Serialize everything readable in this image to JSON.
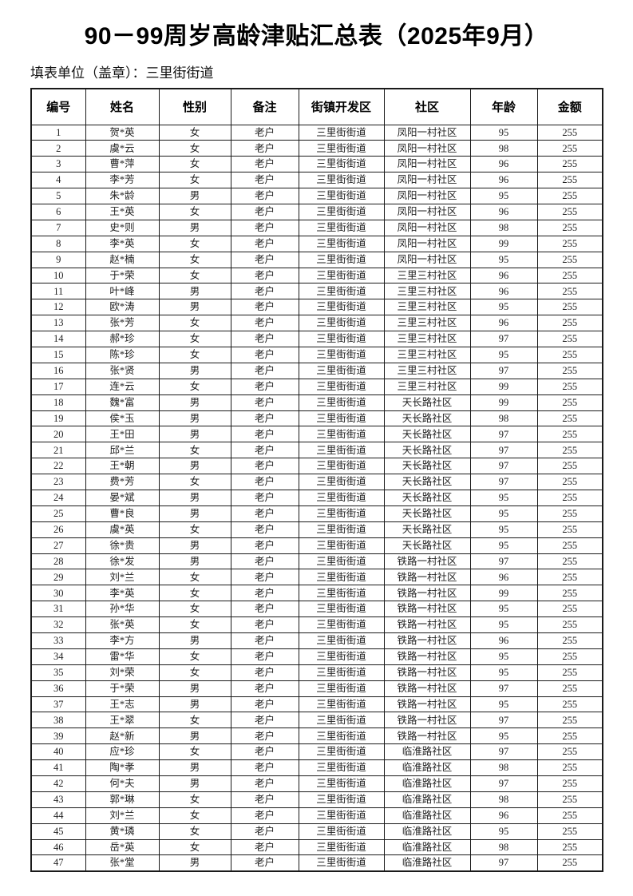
{
  "page": {
    "title": "90－99周岁高龄津贴汇总表（2025年9月）",
    "subtitle": "填表单位（盖章）：三里街街道"
  },
  "table": {
    "headers": [
      "编号",
      "姓名",
      "性别",
      "备注",
      "街镇开发区",
      "社区",
      "年龄",
      "金额"
    ],
    "column_keys": [
      "serial",
      "name",
      "gender",
      "note",
      "street",
      "community",
      "age",
      "amount"
    ],
    "rows": [
      [
        "1",
        "贺*英",
        "女",
        "老户",
        "三里街街道",
        "凤阳一村社区",
        "95",
        "255"
      ],
      [
        "2",
        "虞*云",
        "女",
        "老户",
        "三里街街道",
        "凤阳一村社区",
        "98",
        "255"
      ],
      [
        "3",
        "曹*萍",
        "女",
        "老户",
        "三里街街道",
        "凤阳一村社区",
        "96",
        "255"
      ],
      [
        "4",
        "李*芳",
        "女",
        "老户",
        "三里街街道",
        "凤阳一村社区",
        "96",
        "255"
      ],
      [
        "5",
        "朱*龄",
        "男",
        "老户",
        "三里街街道",
        "凤阳一村社区",
        "95",
        "255"
      ],
      [
        "6",
        "王*英",
        "女",
        "老户",
        "三里街街道",
        "凤阳一村社区",
        "96",
        "255"
      ],
      [
        "7",
        "史*则",
        "男",
        "老户",
        "三里街街道",
        "凤阳一村社区",
        "98",
        "255"
      ],
      [
        "8",
        "李*英",
        "女",
        "老户",
        "三里街街道",
        "凤阳一村社区",
        "99",
        "255"
      ],
      [
        "9",
        "赵*楠",
        "女",
        "老户",
        "三里街街道",
        "凤阳一村社区",
        "95",
        "255"
      ],
      [
        "10",
        "于*荣",
        "女",
        "老户",
        "三里街街道",
        "三里三村社区",
        "96",
        "255"
      ],
      [
        "11",
        "叶*峰",
        "男",
        "老户",
        "三里街街道",
        "三里三村社区",
        "96",
        "255"
      ],
      [
        "12",
        "欧*涛",
        "男",
        "老户",
        "三里街街道",
        "三里三村社区",
        "95",
        "255"
      ],
      [
        "13",
        "张*芳",
        "女",
        "老户",
        "三里街街道",
        "三里三村社区",
        "96",
        "255"
      ],
      [
        "14",
        "郝*珍",
        "女",
        "老户",
        "三里街街道",
        "三里三村社区",
        "97",
        "255"
      ],
      [
        "15",
        "陈*珍",
        "女",
        "老户",
        "三里街街道",
        "三里三村社区",
        "95",
        "255"
      ],
      [
        "16",
        "张*贤",
        "男",
        "老户",
        "三里街街道",
        "三里三村社区",
        "97",
        "255"
      ],
      [
        "17",
        "连*云",
        "女",
        "老户",
        "三里街街道",
        "三里三村社区",
        "99",
        "255"
      ],
      [
        "18",
        "魏*富",
        "男",
        "老户",
        "三里街街道",
        "天长路社区",
        "99",
        "255"
      ],
      [
        "19",
        "侯*玉",
        "男",
        "老户",
        "三里街街道",
        "天长路社区",
        "98",
        "255"
      ],
      [
        "20",
        "王*田",
        "男",
        "老户",
        "三里街街道",
        "天长路社区",
        "97",
        "255"
      ],
      [
        "21",
        "邱*兰",
        "女",
        "老户",
        "三里街街道",
        "天长路社区",
        "97",
        "255"
      ],
      [
        "22",
        "王*朝",
        "男",
        "老户",
        "三里街街道",
        "天长路社区",
        "97",
        "255"
      ],
      [
        "23",
        "费*芳",
        "女",
        "老户",
        "三里街街道",
        "天长路社区",
        "97",
        "255"
      ],
      [
        "24",
        "晏*斌",
        "男",
        "老户",
        "三里街街道",
        "天长路社区",
        "95",
        "255"
      ],
      [
        "25",
        "曹*良",
        "男",
        "老户",
        "三里街街道",
        "天长路社区",
        "95",
        "255"
      ],
      [
        "26",
        "虞*英",
        "女",
        "老户",
        "三里街街道",
        "天长路社区",
        "95",
        "255"
      ],
      [
        "27",
        "徐*贵",
        "男",
        "老户",
        "三里街街道",
        "天长路社区",
        "95",
        "255"
      ],
      [
        "28",
        "徐*发",
        "男",
        "老户",
        "三里街街道",
        "铁路一村社区",
        "97",
        "255"
      ],
      [
        "29",
        "刘*兰",
        "女",
        "老户",
        "三里街街道",
        "铁路一村社区",
        "96",
        "255"
      ],
      [
        "30",
        "李*英",
        "女",
        "老户",
        "三里街街道",
        "铁路一村社区",
        "99",
        "255"
      ],
      [
        "31",
        "孙*华",
        "女",
        "老户",
        "三里街街道",
        "铁路一村社区",
        "95",
        "255"
      ],
      [
        "32",
        "张*英",
        "女",
        "老户",
        "三里街街道",
        "铁路一村社区",
        "95",
        "255"
      ],
      [
        "33",
        "李*方",
        "男",
        "老户",
        "三里街街道",
        "铁路一村社区",
        "96",
        "255"
      ],
      [
        "34",
        "雷*华",
        "女",
        "老户",
        "三里街街道",
        "铁路一村社区",
        "95",
        "255"
      ],
      [
        "35",
        "刘*荣",
        "女",
        "老户",
        "三里街街道",
        "铁路一村社区",
        "95",
        "255"
      ],
      [
        "36",
        "于*荣",
        "男",
        "老户",
        "三里街街道",
        "铁路一村社区",
        "97",
        "255"
      ],
      [
        "37",
        "王*志",
        "男",
        "老户",
        "三里街街道",
        "铁路一村社区",
        "95",
        "255"
      ],
      [
        "38",
        "王*翠",
        "女",
        "老户",
        "三里街街道",
        "铁路一村社区",
        "97",
        "255"
      ],
      [
        "39",
        "赵*新",
        "男",
        "老户",
        "三里街街道",
        "铁路一村社区",
        "95",
        "255"
      ],
      [
        "40",
        "应*珍",
        "女",
        "老户",
        "三里街街道",
        "临淮路社区",
        "97",
        "255"
      ],
      [
        "41",
        "陶*孝",
        "男",
        "老户",
        "三里街街道",
        "临淮路社区",
        "98",
        "255"
      ],
      [
        "42",
        "何*夫",
        "男",
        "老户",
        "三里街街道",
        "临淮路社区",
        "97",
        "255"
      ],
      [
        "43",
        "郭*琳",
        "女",
        "老户",
        "三里街街道",
        "临淮路社区",
        "98",
        "255"
      ],
      [
        "44",
        "刘*兰",
        "女",
        "老户",
        "三里街街道",
        "临淮路社区",
        "96",
        "255"
      ],
      [
        "45",
        "黄*璘",
        "女",
        "老户",
        "三里街街道",
        "临淮路社区",
        "95",
        "255"
      ],
      [
        "46",
        "岳*英",
        "女",
        "老户",
        "三里街街道",
        "临淮路社区",
        "98",
        "255"
      ],
      [
        "47",
        "张*堂",
        "男",
        "老户",
        "三里街街道",
        "临淮路社区",
        "97",
        "255"
      ]
    ]
  }
}
